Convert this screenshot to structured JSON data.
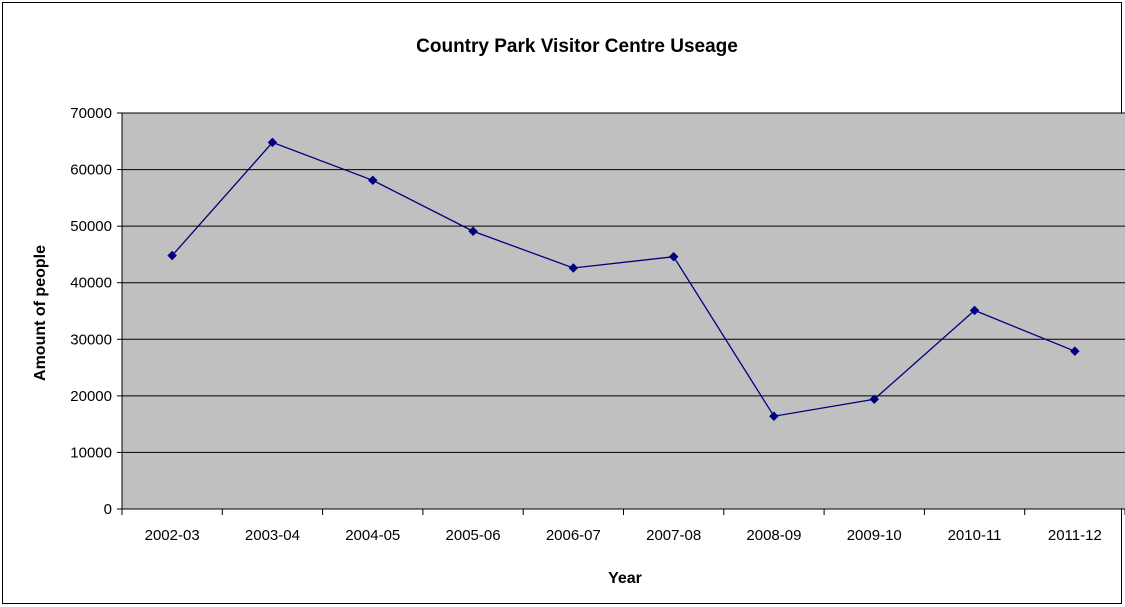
{
  "chart_data": {
    "type": "line",
    "title": "Country Park Visitor Centre Useage",
    "xlabel": "Year",
    "ylabel": "Amount of people",
    "categories": [
      "2002-03",
      "2003-04",
      "2004-05",
      "2005-06",
      "2006-07",
      "2007-08",
      "2008-09",
      "2009-10",
      "2010-11",
      "2011-12"
    ],
    "series": [
      {
        "values": [
          44800,
          64800,
          58100,
          49100,
          42600,
          44600,
          16400,
          19400,
          35100,
          27900
        ]
      }
    ],
    "ylim": [
      0,
      70000
    ],
    "yticks": [
      "0",
      "10000",
      "20000",
      "30000",
      "40000",
      "50000",
      "60000",
      "70000"
    ],
    "grid": true,
    "legend": "none",
    "colors": {
      "plot_area": "#c0c0c0",
      "line": "#000080",
      "marker": "#000080"
    }
  }
}
